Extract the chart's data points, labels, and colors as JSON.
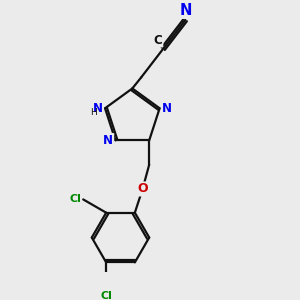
{
  "bg_color": "#ebebeb",
  "bond_color": "#111111",
  "n_color": "#0000ee",
  "o_color": "#cc0000",
  "cl_color": "#008800",
  "lw": 1.6,
  "fs": 9.5,
  "xlim": [
    -1.2,
    2.0
  ],
  "ylim": [
    -3.2,
    2.8
  ],
  "figsize": [
    3.0,
    3.0
  ],
  "dpi": 100
}
